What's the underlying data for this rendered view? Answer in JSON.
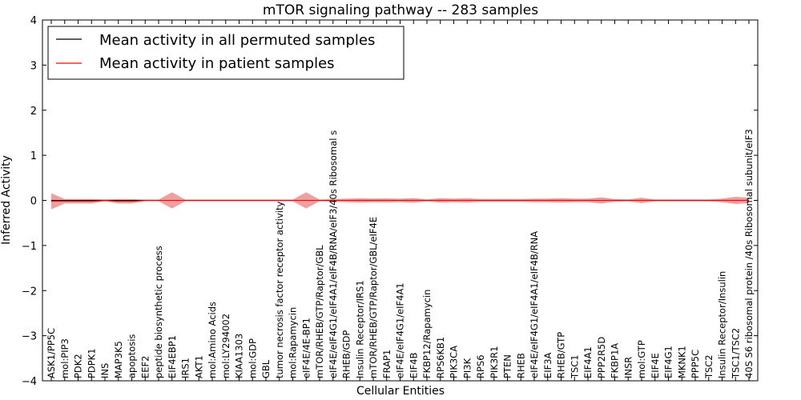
{
  "chart_data": {
    "type": "line",
    "title": "mTOR signaling pathway -- 283 samples",
    "xlabel": "Cellular Entities",
    "ylabel": "Inferred Activity",
    "ylim": [
      -4,
      4
    ],
    "yticks": [
      "−4",
      "−3",
      "−2",
      "−1",
      "0",
      "1",
      "2",
      "3",
      "4"
    ],
    "grid": false,
    "legend_position": "top-left",
    "colors": {
      "permuted": "#000000",
      "patient": "#ff0000",
      "band": "#e88080",
      "band_permuted": "#c8c8c8"
    },
    "categories": [
      "ASK1/PP5C",
      "mol:PIP3",
      "PDK2",
      "PDPK1",
      "INS",
      "MAP3K5",
      "apoptosis",
      "EEF2",
      "peptide biosynthetic process",
      "EIF4EBP1",
      "IRS1",
      "AKT1",
      "mol:Amino Acids",
      "mol:LY294002",
      "KIAA1303",
      "mol:GDP",
      "GBL",
      "tumor necrosis factor receptor activity",
      "mol:Rapamycin",
      "eIF4E/4E-BP1",
      "mTOR/RHEB/GTP/Raptor/GBL",
      "eIF4E/eIF4G1/eIF4A1/eIF4B/RNA/eIF3/40s Ribosomal s",
      "RHEB/GDP",
      "Insulin Receptor/IRS1",
      "mTOR/RHEB/GTP/Raptor/GBL/eIF4E",
      "FRAP1",
      "eIF4E/eIF4G1/eIF4A1",
      "EIF4B",
      "FKBP12/Rapamycin",
      "RPS6KB1",
      "PIK3CA",
      "PI3K",
      "RPS6",
      "PIK3R1",
      "PTEN",
      "RHEB",
      "eIF4E/eIF4G1/eIF4A1/eIF4B/RNA",
      "EIF3A",
      "RHEB/GTP",
      "TSC1",
      "EIF4A1",
      "PPP2R5D",
      "FKBP1A",
      "INSR",
      "mol:GTP",
      "EIF4E",
      "EIF4G1",
      "MKNK1",
      "PPP5C",
      "TSC2",
      "Insulin Receptor/Insulin",
      "TSC1/TSC2",
      "40S S6 ribosomal protein /40s Ribosomal subunit/eIF3"
    ],
    "series": [
      {
        "name": "Mean activity in all permuted samples",
        "values": [
          0,
          0,
          0,
          0,
          0,
          0,
          0,
          0,
          0,
          0,
          0,
          0,
          0,
          0,
          0,
          0,
          0,
          0,
          0,
          0,
          0,
          0,
          0,
          0,
          0,
          0,
          0,
          0,
          0,
          0,
          0,
          0,
          0,
          0,
          0,
          0,
          0,
          0,
          0,
          0,
          0,
          0,
          0,
          0,
          0,
          0,
          0,
          0,
          0,
          0,
          0,
          0,
          0
        ],
        "band_half_width": [
          0.02,
          0.02,
          0.02,
          0.03,
          0.03,
          0.02,
          0.02,
          0.02,
          0.02,
          0.02,
          0.02,
          0.02,
          0.02,
          0.02,
          0.02,
          0.02,
          0.02,
          0.02,
          0.02,
          0.02,
          0.02,
          0.02,
          0.02,
          0.03,
          0.04,
          0.05,
          0.05,
          0.05,
          0.03,
          0.04,
          0.03,
          0.03,
          0.03,
          0.03,
          0.03,
          0.03,
          0.03,
          0.03,
          0.03,
          0.03,
          0.03,
          0.03,
          0.03,
          0.03,
          0.03,
          0.03,
          0.03,
          0.03,
          0.03,
          0.03,
          0.03,
          0.03,
          0.03
        ]
      },
      {
        "name": "Mean activity in patient samples",
        "values": [
          -0.02,
          -0.02,
          -0.02,
          -0.02,
          0,
          -0.02,
          -0.02,
          0,
          0,
          0,
          0,
          0,
          0,
          0,
          0,
          0,
          0,
          0,
          0,
          0,
          0,
          0,
          0,
          0,
          0,
          0,
          0,
          0,
          0,
          0,
          0,
          0,
          0,
          0,
          0,
          0,
          0,
          0,
          0,
          0,
          0,
          0,
          0,
          0,
          0,
          0,
          0,
          0,
          0,
          0,
          0,
          0,
          0
        ],
        "band_half_width": [
          0.18,
          0.05,
          0.05,
          0.05,
          0.02,
          0.05,
          0.05,
          0.02,
          0.02,
          0.18,
          0.02,
          0.02,
          0.02,
          0.02,
          0.02,
          0.02,
          0.02,
          0.02,
          0.02,
          0.18,
          0.02,
          0.03,
          0.04,
          0.05,
          0.04,
          0.04,
          0.03,
          0.05,
          0.02,
          0.05,
          0.04,
          0.05,
          0.03,
          0.03,
          0.03,
          0.03,
          0.04,
          0.04,
          0.05,
          0.04,
          0.04,
          0.07,
          0.03,
          0.02,
          0.06,
          0.02,
          0.02,
          0.02,
          0.02,
          0.02,
          0.04,
          0.08,
          0.06
        ]
      }
    ]
  }
}
